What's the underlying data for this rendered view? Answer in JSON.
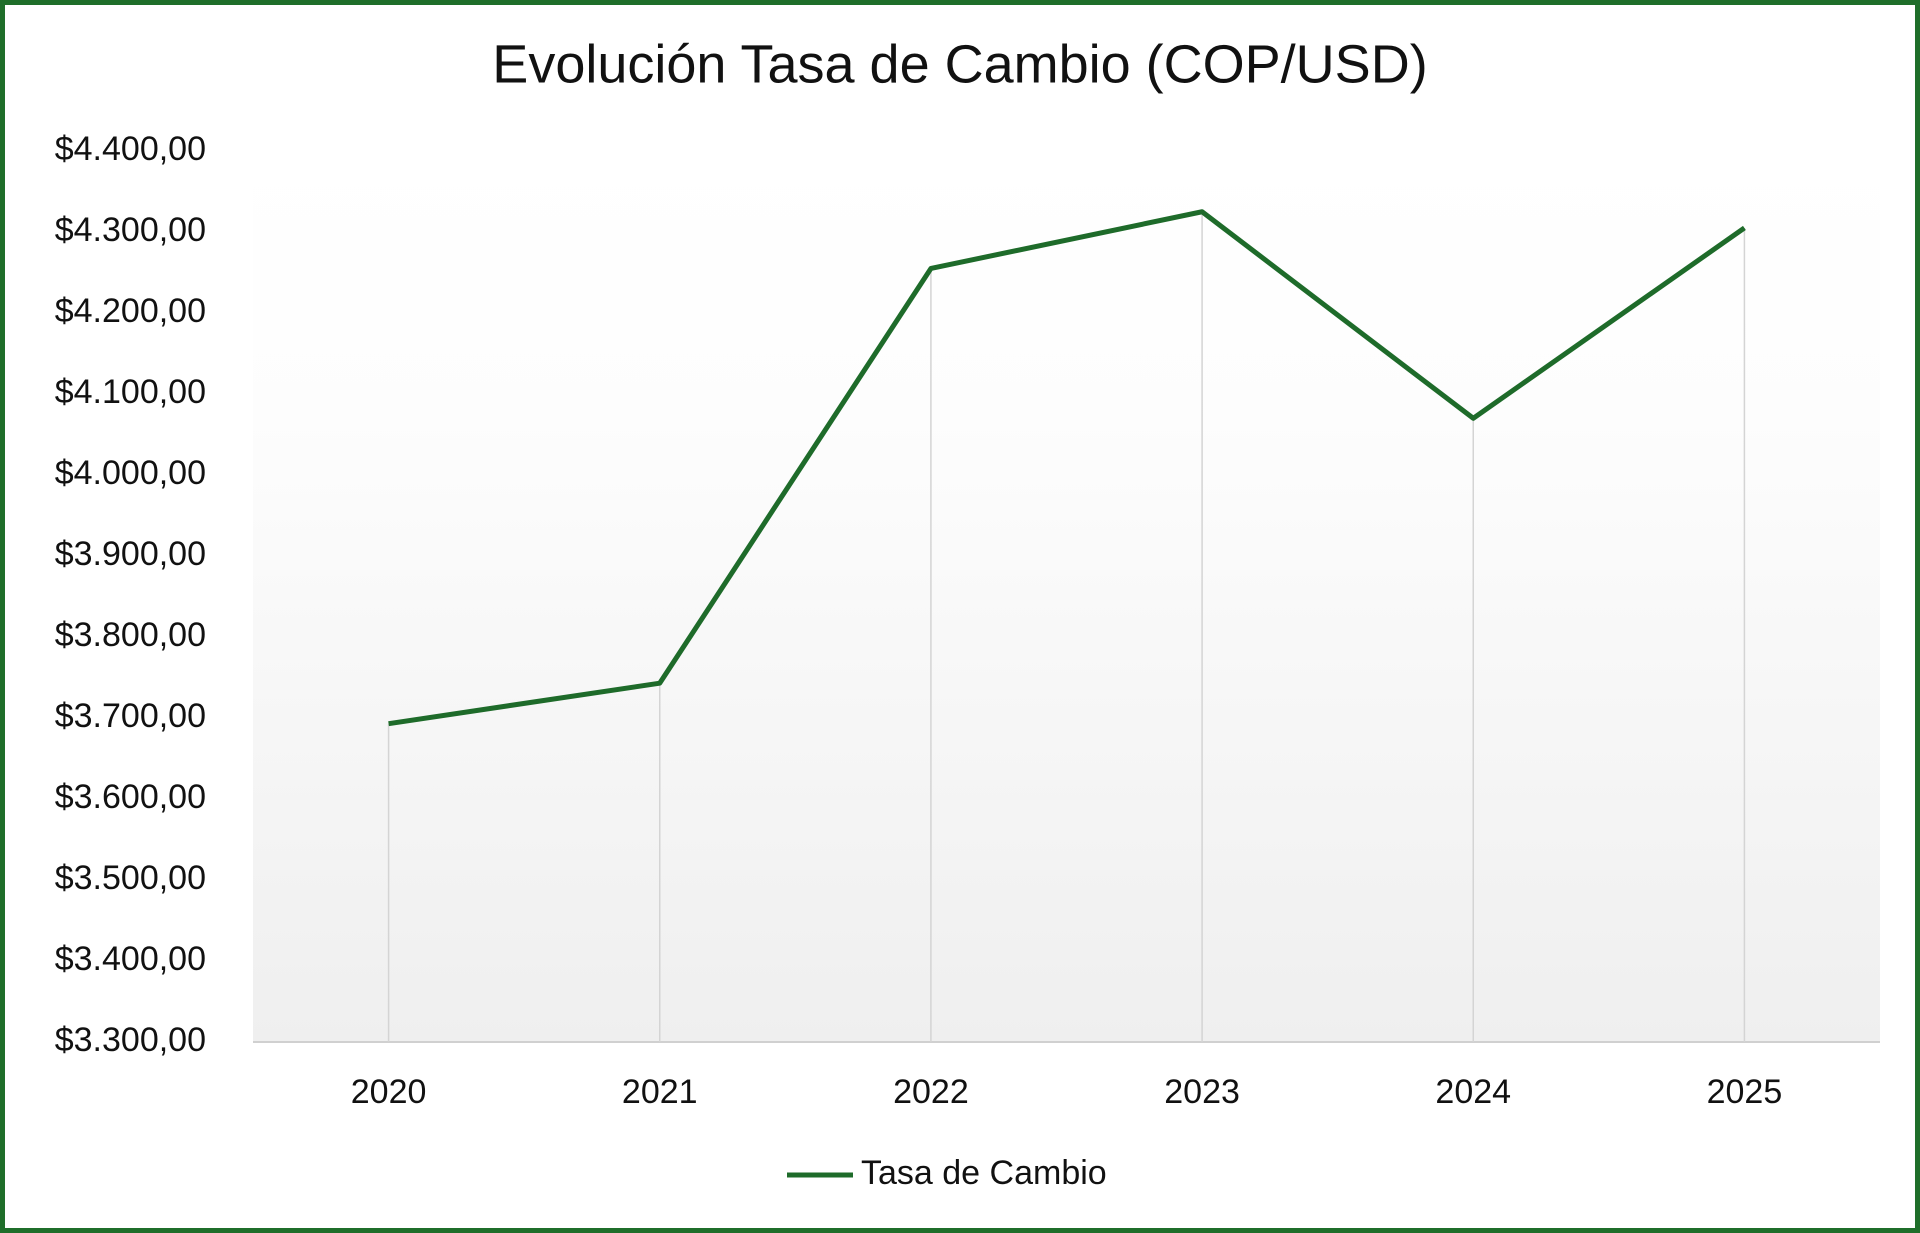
{
  "chart_data": {
    "type": "line",
    "title": "Evolución Tasa de Cambio (COP/USD)",
    "categories": [
      "2020",
      "2021",
      "2022",
      "2023",
      "2024",
      "2025"
    ],
    "series": [
      {
        "name": "Tasa de Cambio",
        "color": "#1e6b2a",
        "values": [
          3693,
          3743,
          4255,
          4325,
          4070,
          4305
        ]
      }
    ],
    "ylim": [
      3300,
      4400
    ],
    "yticks": [
      {
        "value": 3300,
        "label": "$3.300,00"
      },
      {
        "value": 3400,
        "label": "$3.400,00"
      },
      {
        "value": 3500,
        "label": "$3.500,00"
      },
      {
        "value": 3600,
        "label": "$3.600,00"
      },
      {
        "value": 3700,
        "label": "$3.700,00"
      },
      {
        "value": 3800,
        "label": "$3.800,00"
      },
      {
        "value": 3900,
        "label": "$3.900,00"
      },
      {
        "value": 4000,
        "label": "$4.000,00"
      },
      {
        "value": 4100,
        "label": "$4.100,00"
      },
      {
        "value": 4200,
        "label": "$4.200,00"
      },
      {
        "value": 4300,
        "label": "$4.300,00"
      },
      {
        "value": 4400,
        "label": "$4.400,00"
      }
    ],
    "drop_lines": true,
    "legend": "bottom"
  }
}
